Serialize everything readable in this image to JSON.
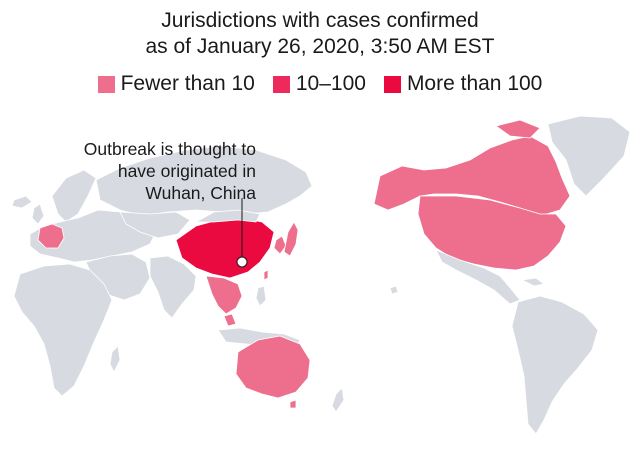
{
  "title": {
    "line1": "Jurisdictions with cases confirmed",
    "line2": "as of January 26, 2020, 3:50 AM EST"
  },
  "legend": [
    {
      "label": "Fewer than 10",
      "color": "#ee6f8d"
    },
    {
      "label": "10–100",
      "color": "#ec2b5c"
    },
    {
      "label": "More than 100",
      "color": "#ea0a3f"
    }
  ],
  "annotation": {
    "line1": "Outbreak is thought to",
    "line2": "have originated in",
    "line3": "Wuhan, China"
  },
  "colors": {
    "land": "#d7dbe1",
    "border": "#ffffff",
    "fewer_than_10": "#ee6f8d",
    "ten_to_100": "#ec2b5c",
    "more_than_100": "#ea0a3f"
  }
}
